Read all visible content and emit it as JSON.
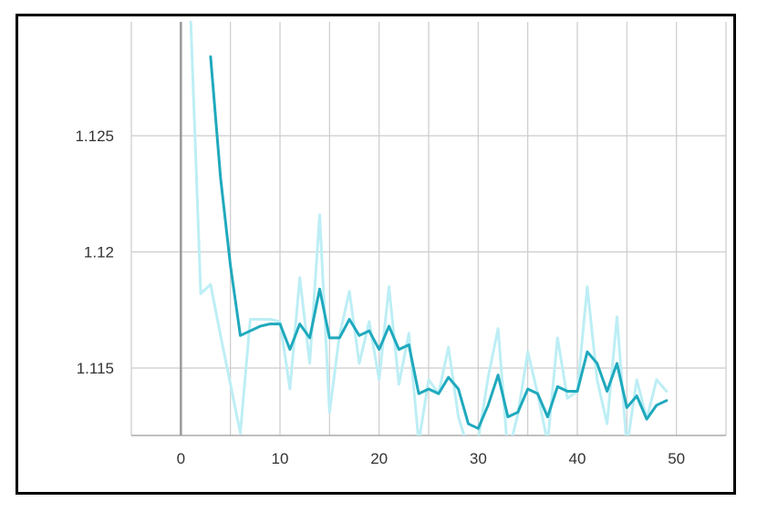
{
  "chart_data": {
    "type": "line",
    "title": "",
    "xlabel": "",
    "ylabel": "",
    "xlim": [
      -5,
      55
    ],
    "ylim": [
      1.1121,
      1.1299
    ],
    "x_ticks": [
      0,
      10,
      20,
      30,
      40,
      50
    ],
    "x_tick_labels": [
      "0",
      "10",
      "20",
      "30",
      "40",
      "50"
    ],
    "y_ticks": [
      1.115,
      1.12,
      1.125
    ],
    "y_tick_labels": [
      "1.115",
      "1.12",
      "1.125"
    ],
    "grid": true,
    "legend": "none",
    "colors": {
      "smoothed": "#1fa9bd",
      "raw": "#bdeef5",
      "grid": "#cccccc",
      "zero_line": "#999999"
    },
    "series": [
      {
        "x": [
          1,
          2,
          3,
          4,
          5,
          6,
          7,
          8,
          9,
          10,
          11,
          12,
          13,
          14,
          15,
          16,
          17,
          18,
          19,
          20,
          21,
          22,
          23,
          24,
          25,
          26,
          27,
          28,
          29,
          30,
          31,
          32,
          33,
          34,
          35,
          36,
          37,
          38,
          39,
          40,
          41,
          42,
          43,
          44,
          45,
          46,
          47,
          48,
          49
        ],
        "values": [
          1.1299,
          1.1182,
          1.1186,
          1.1164,
          1.1143,
          1.1122,
          1.1171,
          1.1171,
          1.1171,
          1.117,
          1.1141,
          1.1189,
          1.1152,
          1.1216,
          1.1131,
          1.1164,
          1.1183,
          1.1152,
          1.117,
          1.1145,
          1.1185,
          1.1143,
          1.1165,
          1.1118,
          1.1145,
          1.1139,
          1.1159,
          1.1129,
          1.1115,
          1.1119,
          1.1146,
          1.1167,
          1.1113,
          1.113,
          1.1157,
          1.1139,
          1.1118,
          1.1163,
          1.1137,
          1.114,
          1.1185,
          1.1145,
          1.1126,
          1.1172,
          1.1116,
          1.1145,
          1.1128,
          1.1145,
          1.114
        ]
      },
      {
        "x": [
          3,
          4,
          5,
          6,
          7,
          8,
          9,
          10,
          11,
          12,
          13,
          14,
          15,
          16,
          17,
          18,
          19,
          20,
          21,
          22,
          23,
          24,
          25,
          26,
          27,
          28,
          29,
          30,
          31,
          32,
          33,
          34,
          35,
          36,
          37,
          38,
          39,
          40,
          41,
          42,
          43,
          44,
          45,
          46,
          47,
          48,
          49
        ],
        "values": [
          1.1284,
          1.1232,
          1.1194,
          1.1164,
          1.1166,
          1.1168,
          1.1169,
          1.1169,
          1.1158,
          1.1169,
          1.1163,
          1.1184,
          1.1163,
          1.1163,
          1.1171,
          1.1164,
          1.1166,
          1.1158,
          1.1168,
          1.1158,
          1.116,
          1.1139,
          1.1141,
          1.1139,
          1.1146,
          1.1141,
          1.1126,
          1.1124,
          1.1134,
          1.1147,
          1.1129,
          1.1131,
          1.1141,
          1.1139,
          1.1129,
          1.1142,
          1.114,
          1.114,
          1.1157,
          1.1152,
          1.114,
          1.1152,
          1.1133,
          1.1138,
          1.1128,
          1.1134,
          1.1136
        ]
      }
    ]
  }
}
